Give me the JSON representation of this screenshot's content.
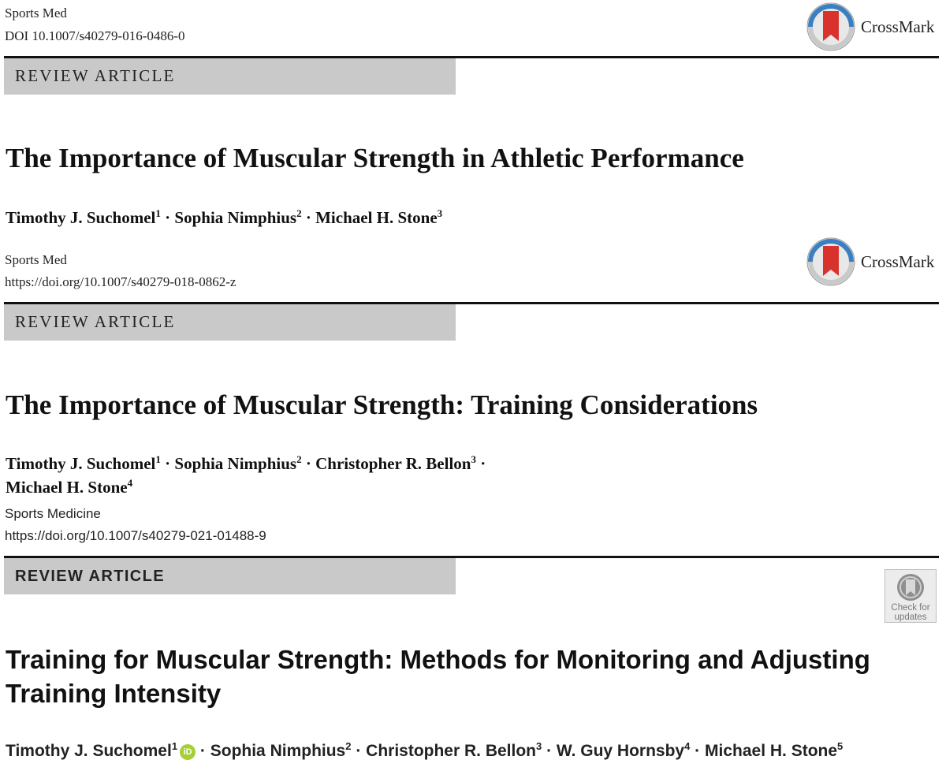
{
  "articles": [
    {
      "journal": "Sports Med",
      "doi": "DOI 10.1007/s40279-016-0486-0",
      "section": "REVIEW ARTICLE",
      "title": "The Importance of Muscular Strength in Athletic Performance",
      "authors": [
        {
          "name": "Timothy J. Suchomel",
          "sup": "1"
        },
        {
          "name": "Sophia Nimphius",
          "sup": "2"
        },
        {
          "name": "Michael H. Stone",
          "sup": "3"
        }
      ],
      "badge": "CrossMark"
    },
    {
      "journal": "Sports Med",
      "doi": "https://doi.org/10.1007/s40279-018-0862-z",
      "section": "REVIEW ARTICLE",
      "title": "The Importance of Muscular Strength: Training Considerations",
      "authors": [
        {
          "name": "Timothy J. Suchomel",
          "sup": "1"
        },
        {
          "name": "Sophia Nimphius",
          "sup": "2"
        },
        {
          "name": "Christopher R. Bellon",
          "sup": "3"
        },
        {
          "name": "Michael H. Stone",
          "sup": "4"
        }
      ],
      "badge": "CrossMark"
    },
    {
      "journal": "Sports Medicine",
      "doi": "https://doi.org/10.1007/s40279-021-01488-9",
      "section": "REVIEW ARTICLE",
      "title_line1": "Training for Muscular Strength: Methods for Monitoring and Adjusting",
      "title_line2": "Training Intensity",
      "authors": [
        {
          "name": "Timothy J. Suchomel",
          "sup": "1"
        },
        {
          "name": "Sophia Nimphius",
          "sup": "2"
        },
        {
          "name": "Christopher R. Bellon",
          "sup": "3"
        },
        {
          "name": "W. Guy Hornsby",
          "sup": "4"
        },
        {
          "name": "Michael H. Stone",
          "sup": "5"
        }
      ],
      "badge_line1": "Check for",
      "badge_line2": "updates"
    }
  ],
  "colors": {
    "banner": "#c9c9c9",
    "crossmark_red": "#d9322d",
    "crossmark_blue": "#3a7fc1",
    "orcid_green": "#a6ce39"
  },
  "separator": " · "
}
